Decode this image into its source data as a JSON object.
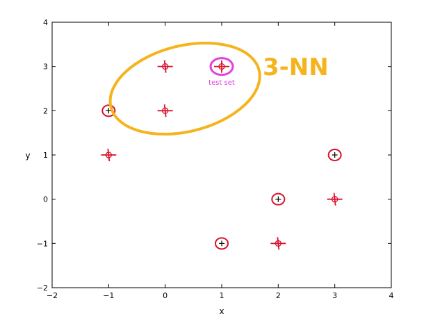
{
  "chart_data": {
    "type": "scatter",
    "title": "",
    "xlabel": "x",
    "ylabel": "y",
    "xlim": [
      -2,
      4
    ],
    "ylim": [
      -2,
      4
    ],
    "xticks": [
      -2,
      -1,
      0,
      1,
      2,
      3,
      4
    ],
    "yticks": [
      -2,
      -1,
      0,
      1,
      2,
      3,
      4
    ],
    "grid": false,
    "series": [
      {
        "points": [
          {
            "x": -1,
            "y": 2,
            "marker": "plus"
          },
          {
            "x": 0,
            "y": 3,
            "marker": "circle"
          },
          {
            "x": 0,
            "y": 2,
            "marker": "circle"
          },
          {
            "x": -1,
            "y": 1,
            "marker": "circle"
          },
          {
            "x": 2,
            "y": 0,
            "marker": "plus"
          },
          {
            "x": 3,
            "y": 1,
            "marker": "plus"
          },
          {
            "x": 3,
            "y": 0,
            "marker": "circle"
          },
          {
            "x": 1,
            "y": -1,
            "marker": "plus"
          },
          {
            "x": 2,
            "y": -1,
            "marker": "circle"
          }
        ]
      }
    ],
    "test_point": {
      "x": 1,
      "y": 3,
      "label": "test set"
    },
    "annotations": [
      {
        "text": "3-NN",
        "color": "#f5b41e"
      }
    ],
    "colors": {
      "marker": "#000000",
      "circle_annotation": "#d8102a",
      "cross_annotation": "#d8102a",
      "test_highlight": "#e040e0",
      "nn_region": "#f5b41e"
    }
  }
}
